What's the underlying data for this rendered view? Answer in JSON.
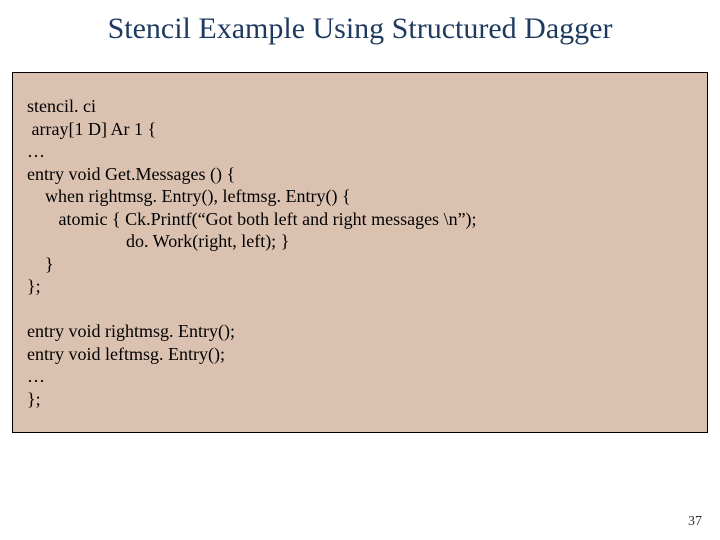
{
  "title": "Stencil Example Using Structured Dagger",
  "code": {
    "line1": "stencil. ci",
    "line2": " array[1 D] Ar 1 {",
    "line3": "…",
    "line4": "entry void Get.Messages () {",
    "line5": "    when rightmsg. Entry(), leftmsg. Entry() {",
    "line6": "       atomic { Ck.Printf(“Got both left and right messages \\n”);",
    "line7": "                      do. Work(right, left); }",
    "line8": "    }",
    "line9": "};",
    "blank": "",
    "line10": "entry void rightmsg. Entry();",
    "line11": "entry void leftmsg. Entry();",
    "line12": "…",
    "line13": "};"
  },
  "page_number": "37",
  "colors": {
    "title_color": "#1f3a5f",
    "box_bg": "#dbc1b0",
    "box_border": "#000000",
    "text_color": "#000000",
    "page_bg": "#ffffff"
  }
}
